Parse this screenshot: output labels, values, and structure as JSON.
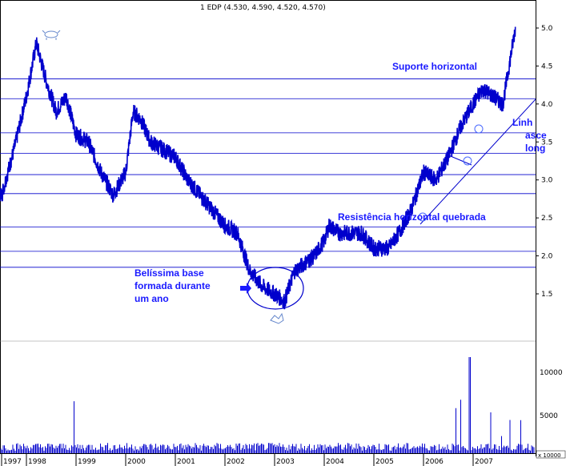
{
  "chart_data": [
    {
      "type": "line",
      "title": "1 EDP (4.530, 4.590, 4.520, 4.570)",
      "x_labels": [
        "1997",
        "1998",
        "1999",
        "2000",
        "2001",
        "2002",
        "2003",
        "2004",
        "2005",
        "2006",
        "2007"
      ],
      "y_ticks": [
        "5.0",
        "4.5",
        "4.0",
        "3.5",
        "3.0",
        "2.5",
        "2.0",
        "1.5"
      ],
      "ylim": [
        1.2,
        5.3
      ],
      "x": [
        1997.0,
        1997.25,
        1997.5,
        1997.75,
        1998.0,
        1998.2,
        1998.4,
        1998.6,
        1998.8,
        1999.0,
        1999.25,
        1999.5,
        1999.75,
        2000.0,
        2000.15,
        2000.3,
        2000.5,
        2000.75,
        2001.0,
        2001.25,
        2001.5,
        2001.75,
        2002.0,
        2002.25,
        2002.5,
        2002.75,
        2003.0,
        2003.2,
        2003.4,
        2003.6,
        2003.8,
        2004.0,
        2004.1,
        2004.3,
        2004.5,
        2004.75,
        2005.0,
        2005.3,
        2005.5,
        2005.75,
        2006.0,
        2006.25,
        2006.5,
        2006.75,
        2007.0,
        2007.2,
        2007.4,
        2007.6,
        2007.75,
        2007.85
      ],
      "y": [
        3.2,
        3.0,
        2.8,
        3.4,
        4.1,
        4.8,
        4.3,
        3.9,
        4.1,
        3.6,
        3.5,
        3.1,
        2.8,
        3.1,
        3.9,
        3.8,
        3.5,
        3.4,
        3.3,
        3.0,
        2.8,
        2.6,
        2.4,
        2.3,
        1.8,
        1.6,
        1.5,
        1.4,
        1.8,
        1.9,
        2.0,
        2.2,
        2.4,
        2.3,
        2.3,
        2.3,
        2.1,
        2.1,
        2.3,
        2.6,
        3.1,
        3.0,
        3.3,
        3.7,
        4.0,
        4.2,
        4.1,
        4.0,
        4.6,
        5.0
      ],
      "support_lines": [
        4.33,
        4.07,
        3.62,
        3.35,
        3.07,
        2.82,
        2.38,
        2.06,
        1.85
      ],
      "annotations": [
        "Suporte horizontal",
        "Resistência horizontal quebrada",
        "Belíssima base",
        "formada durante",
        "um ano",
        "Linh",
        "asce",
        "long"
      ]
    },
    {
      "type": "bar",
      "y_ticks": [
        "10000",
        "5000"
      ],
      "footer_label": "x 10000"
    }
  ]
}
